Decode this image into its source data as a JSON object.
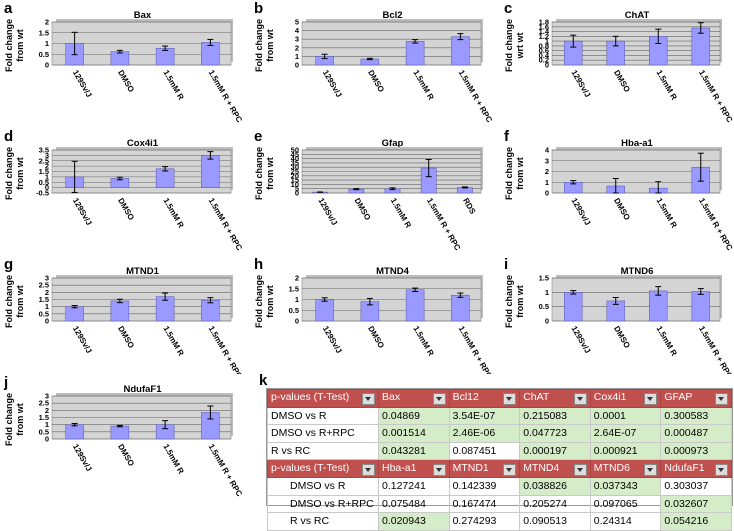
{
  "colors": {
    "bar": "#9999ff",
    "plot_bg": "#d4d4d4",
    "header": "#c0504d",
    "green": "#d5ecc9"
  },
  "chart_data": [
    {
      "id": "a",
      "panel_label": "a",
      "type": "bar",
      "title": "Bax",
      "ylabel": [
        "Fold change",
        "from wt"
      ],
      "categories": [
        "129Sv/J",
        "DMSO",
        "1.5mM R",
        "1.5mM R + RPC"
      ],
      "values": [
        1.0,
        0.62,
        0.78,
        1.05
      ],
      "errors": [
        0.52,
        0.06,
        0.1,
        0.14
      ],
      "ylim": [
        0,
        2
      ],
      "yticks": [
        0,
        0.5,
        1,
        1.5,
        2
      ],
      "yticklabels": [
        "0",
        "0.5",
        "1",
        "1.5",
        "2"
      ]
    },
    {
      "id": "b",
      "panel_label": "b",
      "type": "bar",
      "title": "Bcl2",
      "ylabel": [
        "Fold change",
        "from wt"
      ],
      "categories": [
        "129Sv/J",
        "DMSO",
        "1.5mM R",
        "1.5mM R + RPC"
      ],
      "values": [
        1.0,
        0.7,
        2.75,
        3.3
      ],
      "errors": [
        0.25,
        0.08,
        0.2,
        0.35
      ],
      "ylim": [
        0,
        5
      ],
      "yticks": [
        0,
        1,
        2,
        3,
        4,
        5
      ],
      "yticklabels": [
        "0",
        "1",
        "2",
        "3",
        "4",
        "5"
      ]
    },
    {
      "id": "c",
      "panel_label": "c",
      "type": "bar",
      "title": "ChAT",
      "ylabel": [
        "Fold change",
        "wrt wt"
      ],
      "categories": [
        "129Sv/J",
        "DMSO",
        "1.5mM R",
        "1.5mM R + RPC"
      ],
      "values": [
        1.0,
        1.0,
        1.2,
        1.55
      ],
      "errors": [
        0.25,
        0.2,
        0.3,
        0.22
      ],
      "ylim": [
        0,
        1.8
      ],
      "yticks": [
        0,
        0.2,
        0.4,
        0.6,
        0.8,
        1,
        1.2,
        1.4,
        1.6,
        1.8
      ],
      "yticklabels": [
        "0",
        "0.2",
        "0.4",
        "0.6",
        "0.8",
        "1",
        "1.2",
        "1.4",
        "1.6",
        "1.8"
      ]
    },
    {
      "id": "d",
      "panel_label": "d",
      "type": "bar",
      "title": "Cox4i1",
      "ylabel": [
        "Fold change",
        "from wt"
      ],
      "categories": [
        "129Sv/J",
        "DMSO",
        "1.5mM R",
        "1.5mM R + RPC"
      ],
      "values": [
        1.0,
        0.85,
        1.75,
        3.0
      ],
      "errors": [
        1.45,
        0.12,
        0.2,
        0.35
      ],
      "ylim": [
        -0.5,
        3.5
      ],
      "yticks": [
        -0.5,
        0,
        0.5,
        1,
        1.5,
        2,
        2.5,
        3,
        3.5
      ],
      "yticklabels": [
        "-0.5",
        "0",
        "0.5",
        "1",
        "1.5",
        "2",
        "2.5",
        "3",
        "3.5"
      ]
    },
    {
      "id": "e",
      "panel_label": "e",
      "type": "bar",
      "title": "Gfap",
      "ylabel": [
        "Fold change",
        "from wt"
      ],
      "categories": [
        "129Sv/J",
        "DMSO",
        "1.5mM R",
        "1.5mM R + RPC",
        "RDS"
      ],
      "values": [
        1.0,
        4.5,
        5.0,
        29,
        6.5
      ],
      "errors": [
        0.2,
        0.6,
        1.0,
        10,
        0.6
      ],
      "ylim": [
        0,
        50
      ],
      "yticks": [
        0,
        5,
        10,
        15,
        20,
        25,
        30,
        35,
        40,
        45,
        50
      ],
      "yticklabels": [
        "0",
        "5",
        "10",
        "15",
        "20",
        "25",
        "30",
        "35",
        "40",
        "45",
        "50"
      ]
    },
    {
      "id": "f",
      "panel_label": "f",
      "type": "bar",
      "title": "Hba-a1",
      "ylabel": [
        "Fold change",
        "from wt"
      ],
      "categories": [
        "129Sv/J",
        "DMSO",
        "1.5mM R",
        "1.5mM R + RPC"
      ],
      "values": [
        1.0,
        0.65,
        0.45,
        2.4
      ],
      "errors": [
        0.15,
        0.7,
        0.6,
        1.3
      ],
      "ylim": [
        0,
        4
      ],
      "yticks": [
        0,
        1,
        2,
        3,
        4
      ],
      "yticklabels": [
        "0",
        "1",
        "2",
        "3",
        "4"
      ]
    },
    {
      "id": "g",
      "panel_label": "g",
      "type": "bar",
      "title": "MTND1",
      "ylabel": [
        "Fold change",
        "from wt"
      ],
      "categories": [
        "129Sv/J",
        "DMSO",
        "1.5mM R",
        "1.5mM R + RPC"
      ],
      "values": [
        1.0,
        1.4,
        1.7,
        1.45
      ],
      "errors": [
        0.08,
        0.12,
        0.25,
        0.18
      ],
      "ylim": [
        0,
        3
      ],
      "yticks": [
        0,
        0.5,
        1,
        1.5,
        2,
        2.5,
        3
      ],
      "yticklabels": [
        "0",
        "0.5",
        "1",
        "1.5",
        "2",
        "2.5",
        "3"
      ]
    },
    {
      "id": "h",
      "panel_label": "h",
      "type": "bar",
      "title": "MTND4",
      "ylabel": [
        "Fold change",
        "from wt"
      ],
      "categories": [
        "129Sv/J",
        "DMSO",
        "1.5mM R",
        "1.5mM R + RPC"
      ],
      "values": [
        1.0,
        0.9,
        1.45,
        1.2
      ],
      "errors": [
        0.08,
        0.15,
        0.08,
        0.1
      ],
      "ylim": [
        0,
        2
      ],
      "yticks": [
        0,
        0.5,
        1,
        1.5,
        2
      ],
      "yticklabels": [
        "0",
        "0.5",
        "1",
        "1.5",
        "2"
      ]
    },
    {
      "id": "i",
      "panel_label": "i",
      "type": "bar",
      "title": "MTND6",
      "ylabel": [
        "Fold change",
        "from wt"
      ],
      "categories": [
        "129Sv/J",
        "DMSO",
        "1.5mM R",
        "1.5mM R + RPC"
      ],
      "values": [
        1.0,
        0.7,
        1.05,
        1.03
      ],
      "errors": [
        0.06,
        0.12,
        0.15,
        0.1
      ],
      "ylim": [
        0,
        1.5
      ],
      "yticks": [
        0,
        0.5,
        1,
        1.5
      ],
      "yticklabels": [
        "0",
        "0.5",
        "1",
        "1.5"
      ]
    },
    {
      "id": "j",
      "panel_label": "j",
      "type": "bar",
      "title": "NdufaF1",
      "ylabel": [
        "Fold change",
        "from wt"
      ],
      "categories": [
        "129Sv/J",
        "DMSO",
        "1.5mM R",
        "1.5mM R + RPC"
      ],
      "values": [
        1.0,
        0.9,
        1.0,
        1.85
      ],
      "errors": [
        0.08,
        0.05,
        0.28,
        0.45
      ],
      "ylim": [
        0,
        3
      ],
      "yticks": [
        0,
        0.5,
        1,
        1.5,
        2,
        2.5,
        3
      ],
      "yticklabels": [
        "0",
        "0.5",
        "1",
        "1.5",
        "2",
        "2.5",
        "3"
      ]
    }
  ],
  "ptable": {
    "panel_label": "k",
    "header1": [
      "p-values (T-Test)",
      "Bax",
      "Bcl12",
      "ChAT",
      "Cox4i1",
      "GFAP"
    ],
    "rows1": [
      [
        "DMSO vs R",
        "0.04869",
        "3.54E-07",
        "0.215083",
        "0.0001",
        "0.300583"
      ],
      [
        "DMSO vs R+RPC",
        "0.001514",
        "2.46E-06",
        "0.047723",
        "2.64E-07",
        "0.000487"
      ],
      [
        "R vs RC",
        "0.043281",
        "0.087451",
        "0.000197",
        "0.000921",
        "0.000973"
      ]
    ],
    "green1": [
      [
        1,
        2,
        3,
        4,
        5
      ],
      [
        1,
        2,
        3,
        4,
        5
      ],
      [
        1,
        3,
        4,
        5
      ]
    ],
    "header2": [
      "p-values (T-Test)",
      "Hba-a1",
      "MTND1",
      "MTND4",
      "MTND6",
      "NdufaF1"
    ],
    "rows2": [
      [
        "DMSO vs R",
        "0.127241",
        "0.142339",
        "0.038826",
        "0.037343",
        "0.303037"
      ],
      [
        "DMSO vs R+RPC",
        "0.075484",
        "0.167474",
        "0.205274",
        "0.097065",
        "0.032607"
      ],
      [
        "R vs RC",
        "0.020943",
        "0.274293",
        "0.090513",
        "0.24314",
        "0.054216"
      ]
    ],
    "green2": [
      [
        3,
        4
      ],
      [
        5
      ],
      [
        1,
        5
      ]
    ]
  }
}
